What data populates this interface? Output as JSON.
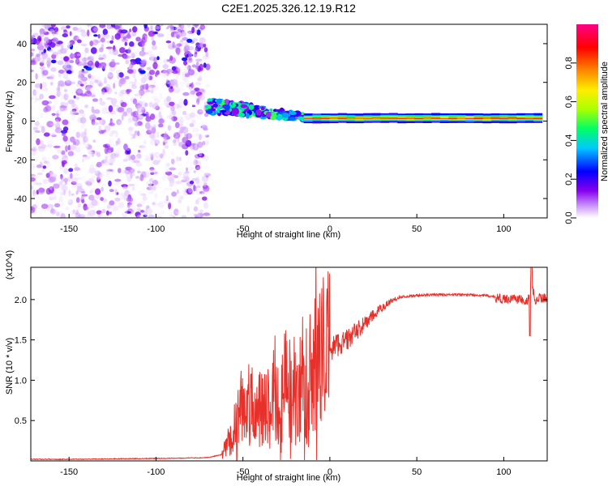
{
  "title": "C2E1.2025.326.12.19.R12",
  "chart_data": [
    {
      "type": "heatmap",
      "name": "spectrogram",
      "xlabel": "Height of straight line (km)",
      "ylabel": "Frequency (Hz)",
      "xlim": [
        -172,
        125
      ],
      "ylim": [
        -50,
        50
      ],
      "xticks": [
        -150,
        -100,
        -50,
        0,
        50,
        100
      ],
      "yticks": [
        -40,
        -20,
        0,
        20,
        40
      ],
      "colorbar": {
        "label": "Normalized spectral amplitude",
        "range": [
          0,
          1
        ],
        "ticks": [
          "0.0",
          "0.2",
          "0.4",
          "0.6",
          "0.8"
        ],
        "colors": [
          "#ffffff",
          "#cc99ff",
          "#8800ee",
          "#0000ff",
          "#00c8ff",
          "#00ff66",
          "#aaff00",
          "#ffee00",
          "#ff8800",
          "#ff0000",
          "#ff0088"
        ]
      },
      "regions": [
        {
          "x_range": [
            -172,
            -70
          ],
          "y_range": [
            -50,
            50
          ],
          "description": "broadband scatter",
          "amplitude": 0.15
        },
        {
          "x_range": [
            -70,
            -15
          ],
          "center_hz": 2,
          "spread_hz": 5,
          "amplitude": 0.4
        },
        {
          "x_range": [
            -15,
            122
          ],
          "center_hz": 1.5,
          "spread_hz": 2,
          "amplitude": 1.0
        }
      ]
    },
    {
      "type": "line",
      "name": "snr",
      "xlabel": "Height of straight line (km)",
      "ylabel": "SNR (10 * v/v)",
      "y_multiplier": "(x10^4)",
      "xlim": [
        -172,
        125
      ],
      "ylim": [
        0,
        2.4
      ],
      "xticks": [
        -150,
        -100,
        -50,
        0,
        50,
        100
      ],
      "yticks": [
        "0.5",
        "1.0",
        "1.5",
        "2.0"
      ],
      "series": [
        {
          "name": "SNR",
          "color": "#e8302a",
          "x": [
            -172,
            -150,
            -100,
            -70,
            -62,
            -58,
            -55,
            -52,
            -50,
            -48,
            -45,
            -42,
            -38,
            -35,
            -32,
            -28,
            -25,
            -22,
            -20,
            -18,
            -15,
            -12,
            -10,
            -7,
            -5,
            -2,
            0,
            5,
            10,
            15,
            20,
            25,
            30,
            35,
            40,
            50,
            60,
            70,
            80,
            90,
            95,
            100,
            105,
            110,
            113,
            115,
            116,
            118,
            120,
            125
          ],
          "y": [
            0.02,
            0.02,
            0.03,
            0.04,
            0.08,
            0.25,
            0.4,
            0.55,
            0.85,
            0.5,
            0.7,
            0.55,
            0.8,
            0.6,
            0.9,
            0.7,
            1.0,
            0.75,
            0.95,
            0.85,
            0.9,
            1.0,
            1.2,
            1.15,
            1.3,
            1.35,
            1.4,
            1.45,
            1.5,
            1.6,
            1.7,
            1.8,
            1.9,
            1.98,
            2.03,
            2.05,
            2.06,
            2.06,
            2.06,
            2.05,
            2.03,
            2.0,
            2.02,
            2.0,
            1.95,
            2.1,
            2.2,
            2.0,
            2.02,
            2.02
          ]
        }
      ]
    }
  ]
}
